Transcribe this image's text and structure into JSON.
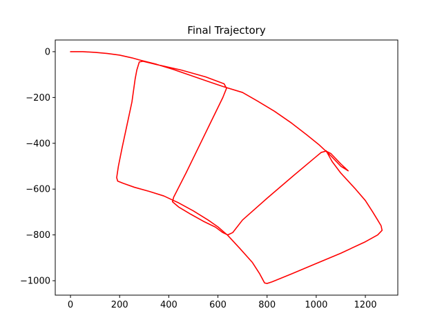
{
  "chart_data": {
    "type": "line",
    "title": "Final Trajectory",
    "xlabel": "",
    "ylabel": "",
    "xlim": [
      -62,
      1332
    ],
    "ylim": [
      -1063,
      51
    ],
    "xticks": [
      0,
      200,
      400,
      600,
      800,
      1000,
      1200
    ],
    "xtick_labels": [
      "0",
      "200",
      "400",
      "600",
      "800",
      "1000",
      "1200"
    ],
    "yticks": [
      0,
      -200,
      -400,
      -600,
      -800,
      -1000
    ],
    "ytick_labels": [
      "0",
      "−200",
      "−400",
      "−600",
      "−800",
      "−1000"
    ],
    "grid": false,
    "legend": "none",
    "series": [
      {
        "color": "#ff0000",
        "points": [
          [
            0,
            0
          ],
          [
            50,
            0
          ],
          [
            100,
            -3
          ],
          [
            150,
            -8
          ],
          [
            200,
            -15
          ],
          [
            250,
            -27
          ],
          [
            280,
            -36
          ],
          [
            350,
            -55
          ],
          [
            420,
            -78
          ],
          [
            490,
            -104
          ],
          [
            560,
            -130
          ],
          [
            620,
            -152
          ],
          [
            700,
            -178
          ],
          [
            760,
            -215
          ],
          [
            830,
            -260
          ],
          [
            900,
            -312
          ],
          [
            960,
            -362
          ],
          [
            1010,
            -405
          ],
          [
            1060,
            -455
          ],
          [
            1100,
            -500
          ],
          [
            1130,
            -520
          ],
          [
            1100,
            -490
          ],
          [
            1060,
            -445
          ],
          [
            1040,
            -434
          ],
          [
            1020,
            -440
          ],
          [
            1000,
            -458
          ],
          [
            900,
            -548
          ],
          [
            800,
            -640
          ],
          [
            700,
            -735
          ],
          [
            660,
            -790
          ],
          [
            640,
            -800
          ],
          [
            620,
            -790
          ],
          [
            590,
            -766
          ],
          [
            540,
            -740
          ],
          [
            490,
            -710
          ],
          [
            440,
            -678
          ],
          [
            415,
            -655
          ],
          [
            420,
            -635
          ],
          [
            470,
            -530
          ],
          [
            520,
            -420
          ],
          [
            570,
            -310
          ],
          [
            620,
            -200
          ],
          [
            635,
            -160
          ],
          [
            625,
            -140
          ],
          [
            550,
            -110
          ],
          [
            450,
            -80
          ],
          [
            350,
            -56
          ],
          [
            295,
            -42
          ],
          [
            280,
            -45
          ],
          [
            270,
            -80
          ],
          [
            263,
            -120
          ],
          [
            250,
            -220
          ],
          [
            230,
            -320
          ],
          [
            210,
            -420
          ],
          [
            195,
            -500
          ],
          [
            188,
            -550
          ],
          [
            192,
            -565
          ],
          [
            215,
            -575
          ],
          [
            260,
            -592
          ],
          [
            320,
            -610
          ],
          [
            380,
            -630
          ],
          [
            440,
            -660
          ],
          [
            500,
            -695
          ],
          [
            560,
            -735
          ],
          [
            600,
            -765
          ],
          [
            640,
            -802
          ],
          [
            690,
            -860
          ],
          [
            740,
            -920
          ],
          [
            770,
            -970
          ],
          [
            790,
            -1010
          ],
          [
            800,
            -1012
          ],
          [
            820,
            -1005
          ],
          [
            900,
            -970
          ],
          [
            1000,
            -925
          ],
          [
            1100,
            -880
          ],
          [
            1200,
            -830
          ],
          [
            1250,
            -800
          ],
          [
            1268,
            -780
          ],
          [
            1264,
            -760
          ],
          [
            1250,
            -735
          ],
          [
            1230,
            -700
          ],
          [
            1200,
            -650
          ],
          [
            1160,
            -600
          ],
          [
            1130,
            -565
          ],
          [
            1100,
            -530
          ],
          [
            1065,
            -480
          ],
          [
            1040,
            -432
          ]
        ]
      }
    ]
  }
}
